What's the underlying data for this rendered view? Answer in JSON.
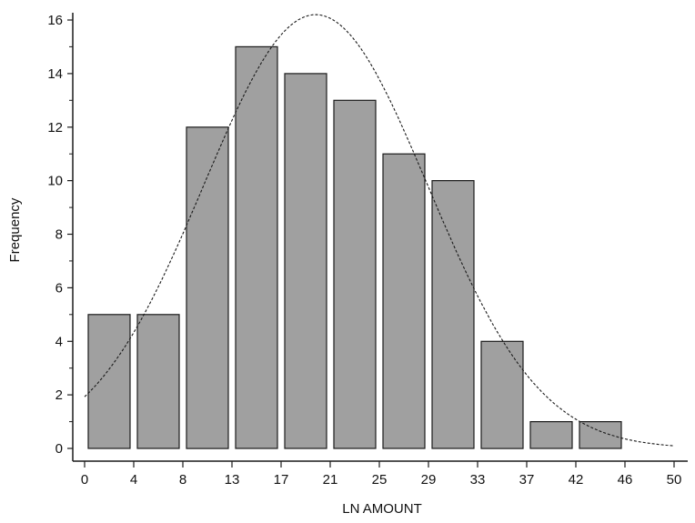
{
  "chart_data": {
    "type": "bar",
    "title": "",
    "xlabel": "LN AMOUNT",
    "ylabel": "Frequency",
    "x_tick_labels": [
      "0",
      "4",
      "8",
      "13",
      "17",
      "21",
      "25",
      "29",
      "33",
      "37",
      "42",
      "46",
      "50"
    ],
    "y_tick_labels": [
      "0",
      "2",
      "4",
      "6",
      "8",
      "10",
      "12",
      "14",
      "16"
    ],
    "xlim": [
      0,
      50
    ],
    "ylim": [
      0,
      16
    ],
    "bins": [
      {
        "start": 0,
        "end": 4,
        "value": 5
      },
      {
        "start": 4,
        "end": 8,
        "value": 5
      },
      {
        "start": 8,
        "end": 13,
        "value": 12
      },
      {
        "start": 13,
        "end": 17,
        "value": 15
      },
      {
        "start": 17,
        "end": 21,
        "value": 14
      },
      {
        "start": 21,
        "end": 25,
        "value": 13
      },
      {
        "start": 25,
        "end": 29,
        "value": 11
      },
      {
        "start": 29,
        "end": 33,
        "value": 10
      },
      {
        "start": 33,
        "end": 37,
        "value": 4
      },
      {
        "start": 37,
        "end": 42,
        "value": 1
      },
      {
        "start": 42,
        "end": 46,
        "value": 1
      }
    ],
    "curve": {
      "type": "normal",
      "mean": 19.6,
      "peak": 16.2,
      "sd": 9.5,
      "style": "dashed"
    },
    "grid": false,
    "legend": "none",
    "colors": {
      "bar_fill": "#a0a0a0",
      "bar_stroke": "#1a1a1a",
      "curve": "#1a1a1a",
      "axis": "#1a1a1a",
      "text": "#111111",
      "background": "#ffffff"
    }
  }
}
